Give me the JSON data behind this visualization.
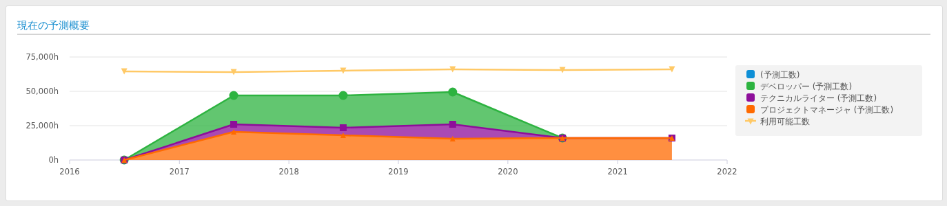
{
  "chart_data": {
    "type": "area",
    "title": "現在の予測概要",
    "stacked": true,
    "x": [
      "2016-07-01",
      "2017-07-01",
      "2018-07-01",
      "2019-07-01",
      "2020-07-01",
      "2021-07-01"
    ],
    "xlim": [
      "2016-01-01",
      "2022-01-01"
    ],
    "xticks": [
      {
        "value": "2016-01-01",
        "label": "2016"
      },
      {
        "value": "2017-01-01",
        "label": "2017"
      },
      {
        "value": "2018-01-01",
        "label": "2018"
      },
      {
        "value": "2019-01-01",
        "label": "2019"
      },
      {
        "value": "2020-01-01",
        "label": "2020"
      },
      {
        "value": "2021-01-01",
        "label": "2021"
      },
      {
        "value": "2022-01-01",
        "label": "2022"
      }
    ],
    "ylim": [
      0,
      75000
    ],
    "yticks": [
      {
        "value": 0,
        "label": "0h"
      },
      {
        "value": 25000,
        "label": "25,000h"
      },
      {
        "value": 50000,
        "label": "50,000h"
      },
      {
        "value": 75000,
        "label": "75,000h"
      }
    ],
    "grid": "y",
    "legend": "right",
    "series": [
      {
        "name": "プロジェクトマネージャ (予測工数)",
        "color": "#ff6a00",
        "marker": "triangle",
        "values": [
          0,
          20500,
          18000,
          15500,
          16000,
          16000
        ]
      },
      {
        "name": "テクニカルライター (予測工数)",
        "color": "#8e0e9a",
        "marker": "square",
        "values": [
          0,
          5500,
          5500,
          10500,
          0,
          0
        ]
      },
      {
        "name": "デベロッパー (予測工数)",
        "color": "#2db340",
        "marker": "circle",
        "values": [
          0,
          21000,
          23500,
          23500,
          0,
          null
        ]
      },
      {
        "name": "(予測工数)",
        "color": "#0e8fd6",
        "values": [
          null,
          null,
          null,
          null,
          null,
          null
        ]
      },
      {
        "name": "利用可能工数",
        "type": "line",
        "color": "#ffc966",
        "marker": "triangle-down",
        "values": [
          64500,
          64000,
          65000,
          66000,
          65500,
          66000
        ]
      }
    ]
  }
}
